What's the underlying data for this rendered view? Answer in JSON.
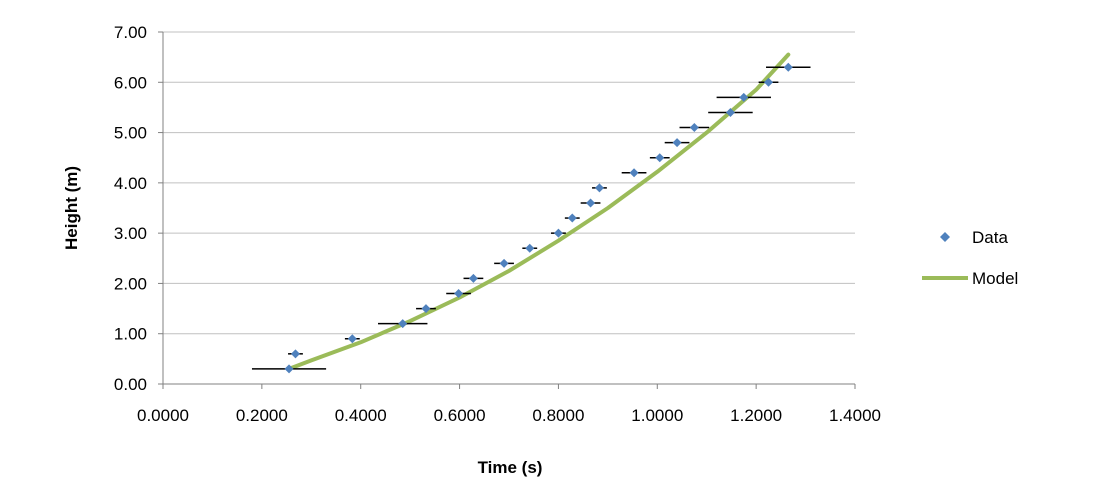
{
  "chart_data": {
    "type": "scatter",
    "xlabel": "Time (s)",
    "ylabel": "Height (m)",
    "xlim": [
      0,
      1.4
    ],
    "ylim": [
      0,
      7
    ],
    "x_ticks": [
      "0.0000",
      "0.2000",
      "0.4000",
      "0.6000",
      "0.8000",
      "1.0000",
      "1.2000",
      "1.4000"
    ],
    "y_ticks": [
      "0.00",
      "1.00",
      "2.00",
      "3.00",
      "4.00",
      "5.00",
      "6.00",
      "7.00"
    ],
    "grid": "horizontal",
    "legend_position": "right",
    "series": [
      {
        "name": "Data",
        "kind": "scatter",
        "marker": "diamond",
        "color": "#4F81BD",
        "points": [
          {
            "x": 0.255,
            "y": 0.3,
            "xerr": 0.075
          },
          {
            "x": 0.268,
            "y": 0.6,
            "xerr": 0.015
          },
          {
            "x": 0.383,
            "y": 0.9,
            "xerr": 0.015
          },
          {
            "x": 0.485,
            "y": 1.2,
            "xerr": 0.05
          },
          {
            "x": 0.532,
            "y": 1.5,
            "xerr": 0.02
          },
          {
            "x": 0.598,
            "y": 1.8,
            "xerr": 0.025
          },
          {
            "x": 0.628,
            "y": 2.1,
            "xerr": 0.02
          },
          {
            "x": 0.69,
            "y": 2.4,
            "xerr": 0.02
          },
          {
            "x": 0.742,
            "y": 2.7,
            "xerr": 0.015
          },
          {
            "x": 0.8,
            "y": 3.0,
            "xerr": 0.015
          },
          {
            "x": 0.828,
            "y": 3.3,
            "xerr": 0.015
          },
          {
            "x": 0.865,
            "y": 3.6,
            "xerr": 0.02
          },
          {
            "x": 0.883,
            "y": 3.9,
            "xerr": 0.015
          },
          {
            "x": 0.953,
            "y": 4.2,
            "xerr": 0.025
          },
          {
            "x": 1.005,
            "y": 4.5,
            "xerr": 0.02
          },
          {
            "x": 1.04,
            "y": 4.8,
            "xerr": 0.025
          },
          {
            "x": 1.075,
            "y": 5.1,
            "xerr": 0.03
          },
          {
            "x": 1.148,
            "y": 5.4,
            "xerr": 0.045
          },
          {
            "x": 1.175,
            "y": 5.7,
            "xerr": 0.055
          },
          {
            "x": 1.225,
            "y": 6.0,
            "xerr": 0.02
          },
          {
            "x": 1.265,
            "y": 6.3,
            "xerr": 0.045
          }
        ]
      },
      {
        "name": "Model",
        "kind": "line",
        "color": "#9BBB59",
        "points": [
          {
            "x": 0.255,
            "y": 0.3
          },
          {
            "x": 0.3,
            "y": 0.47
          },
          {
            "x": 0.4,
            "y": 0.83
          },
          {
            "x": 0.5,
            "y": 1.25
          },
          {
            "x": 0.6,
            "y": 1.72
          },
          {
            "x": 0.7,
            "y": 2.25
          },
          {
            "x": 0.8,
            "y": 2.85
          },
          {
            "x": 0.9,
            "y": 3.5
          },
          {
            "x": 1.0,
            "y": 4.22
          },
          {
            "x": 1.1,
            "y": 5.0
          },
          {
            "x": 1.2,
            "y": 5.85
          },
          {
            "x": 1.265,
            "y": 6.55
          }
        ]
      }
    ]
  }
}
